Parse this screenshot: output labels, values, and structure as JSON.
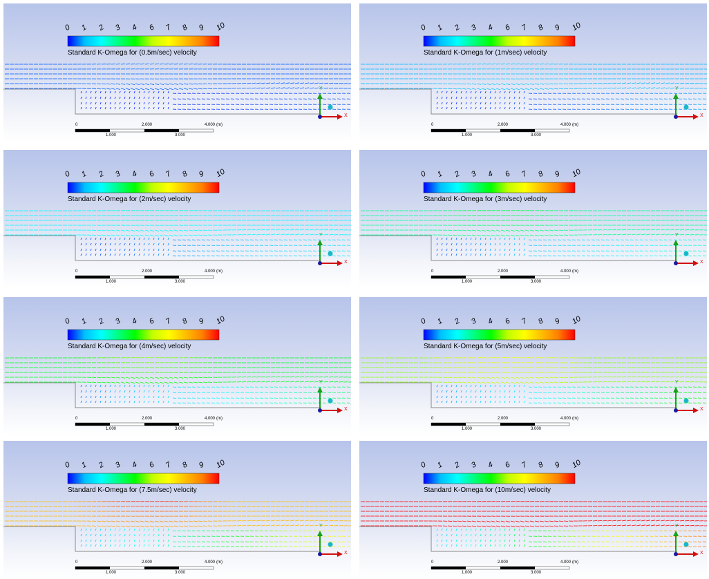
{
  "colorbar": {
    "ticks": [
      "0",
      "1",
      "2",
      "3",
      "4",
      "6",
      "7",
      "8",
      "9",
      "10"
    ],
    "colors": [
      "#0000ff",
      "#00bfff",
      "#00ffff",
      "#00ff80",
      "#00ff00",
      "#bfff00",
      "#ffff00",
      "#ffbf00",
      "#ff8000",
      "#ff0000"
    ]
  },
  "scale_bar": {
    "top_labels": [
      "0",
      "2.000",
      "4.000"
    ],
    "bottom_labels": [
      "1.000",
      "3.000"
    ],
    "unit": "(m)"
  },
  "triad": {
    "y_label": "Y",
    "x_label": "X"
  },
  "panels": [
    {
      "title": "Standard K-Omega for (0.5m/sec) velocity",
      "inlet_speed": 0.5
    },
    {
      "title": "Standard K-Omega for (1m/sec) velocity",
      "inlet_speed": 1
    },
    {
      "title": "Standard K-Omega for (2m/sec) velocity",
      "inlet_speed": 2
    },
    {
      "title": "Standard K-Omega for (3m/sec) velocity",
      "inlet_speed": 3
    },
    {
      "title": "Standard K-Omega for (4m/sec) velocity",
      "inlet_speed": 4
    },
    {
      "title": "Standard K-Omega for (5m/sec) velocity",
      "inlet_speed": 5
    },
    {
      "title": "Standard K-Omega for (7.5m/sec) velocity",
      "inlet_speed": 7.5
    },
    {
      "title": "Standard K-Omega for (10m/sec) velocity",
      "inlet_speed": 10
    }
  ]
}
